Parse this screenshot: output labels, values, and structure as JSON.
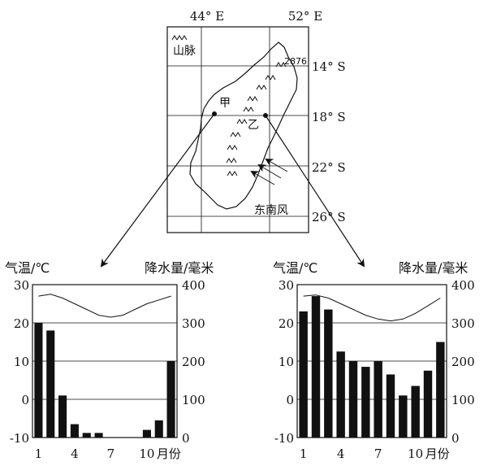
{
  "map": {
    "lon_labels": [
      "44° E",
      "52° E"
    ],
    "lat_labels": [
      "14° S",
      "18° S",
      "22° S",
      "26° S"
    ],
    "legend_label": "山脉",
    "peak_label": "2876",
    "point_jia": "甲",
    "point_yi": "乙",
    "wind_label": "东南风"
  },
  "chart_data": [
    {
      "type": "bar",
      "title": "",
      "left_axis_label": "气温/℃",
      "right_axis_label": "降水量/毫米",
      "x_unit_label": "月份",
      "x_tick_labels": [
        "1",
        "4",
        "7",
        "10"
      ],
      "left_ticks": [
        "30",
        "20",
        "10",
        "0",
        "-10"
      ],
      "right_ticks": [
        "400",
        "300",
        "200",
        "100",
        "0"
      ],
      "ylim_temp": [
        -10,
        30
      ],
      "ylim_precip": [
        0,
        400
      ],
      "months": [
        1,
        2,
        3,
        4,
        5,
        6,
        7,
        8,
        9,
        10,
        11,
        12
      ],
      "precipitation": [
        300,
        280,
        110,
        35,
        12,
        12,
        0,
        0,
        0,
        20,
        45,
        200
      ],
      "temperature": [
        27,
        27.5,
        26.5,
        25,
        23.5,
        22,
        21.5,
        22,
        23.5,
        25,
        26,
        27
      ]
    },
    {
      "type": "bar",
      "title": "",
      "left_axis_label": "气温/℃",
      "right_axis_label": "降水量/毫米",
      "x_unit_label": "月份",
      "x_tick_labels": [
        "1",
        "4",
        "7",
        "10"
      ],
      "left_ticks": [
        "30",
        "20",
        "10",
        "0",
        "-10"
      ],
      "right_ticks": [
        "400",
        "300",
        "200",
        "100",
        "0"
      ],
      "ylim_temp": [
        -10,
        30
      ],
      "ylim_precip": [
        0,
        400
      ],
      "months": [
        1,
        2,
        3,
        4,
        5,
        6,
        7,
        8,
        9,
        10,
        11,
        12
      ],
      "precipitation": [
        330,
        370,
        335,
        225,
        200,
        185,
        200,
        165,
        110,
        135,
        175,
        250
      ],
      "temperature": [
        27,
        27.3,
        26.5,
        25,
        23.5,
        22,
        21,
        20.5,
        21,
        22.5,
        24.5,
        26.5
      ]
    }
  ]
}
